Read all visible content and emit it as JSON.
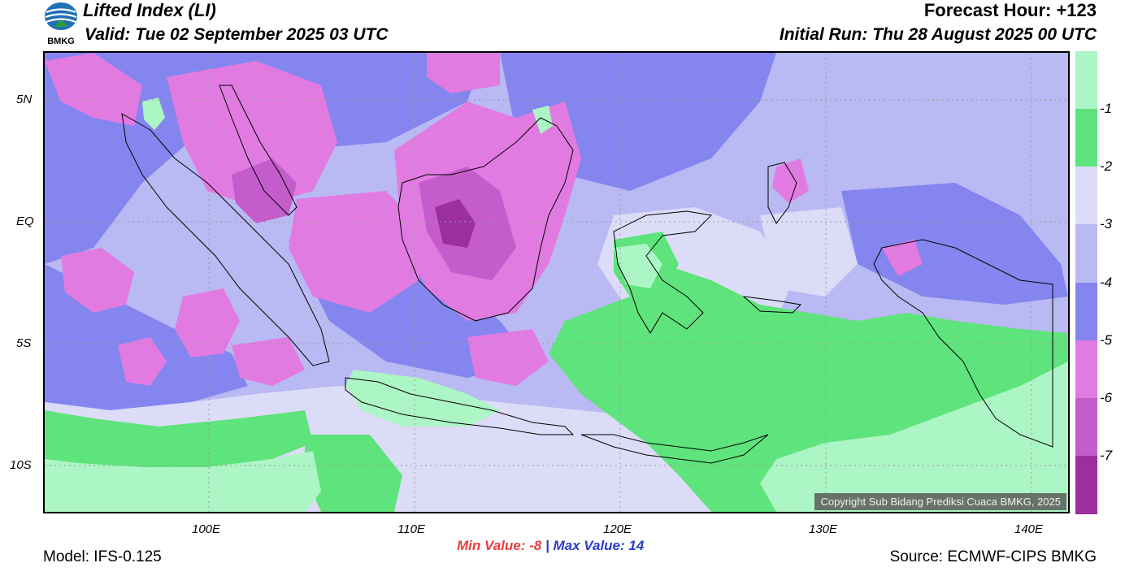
{
  "header": {
    "logo_text": "BMKG",
    "title": "Lifted Index (LI)",
    "valid": "Valid: Tue 02 September 2025 03 UTC",
    "forecast_hour": "Forecast Hour: +123",
    "initial_run": "Initial Run: Thu 28 August 2025 00 UTC"
  },
  "colorbar": {
    "levels": [
      {
        "label": "-1",
        "color": "#acf5c4"
      },
      {
        "label": "-2",
        "color": "#5fe37c"
      },
      {
        "label": "-3",
        "color": "#dcdcf8"
      },
      {
        "label": "-4",
        "color": "#b9b9f3"
      },
      {
        "label": "-5",
        "color": "#8585ef"
      },
      {
        "label": "-6",
        "color": "#e27be1"
      },
      {
        "label": "-7",
        "color": "#c55ccc"
      },
      {
        "label": "",
        "color": "#9a2f9d"
      }
    ]
  },
  "axes": {
    "lat_labels": [
      "5N",
      "EQ",
      "5S",
      "10S"
    ],
    "lon_labels": [
      "100E",
      "110E",
      "120E",
      "130E",
      "140E"
    ]
  },
  "stats": {
    "min_label": "Min Value:",
    "min_value": "-8",
    "separator": "|",
    "max_label": "Max Value:",
    "max_value": "14"
  },
  "footer": {
    "model": "Model: IFS-0.125",
    "source": "Source: ECMWF-CIPS BMKG",
    "copyright": "Copyright Sub Bidang Prediksi Cuaca BMKG, 2025"
  },
  "colors": {
    "cape_light_green": "#acf5c4",
    "green": "#5fe37c",
    "pale_lavender": "#dcdcf8",
    "lavender": "#b9b9f3",
    "blue_violet": "#8585ef",
    "pink": "#e27be1",
    "magenta": "#c55ccc",
    "purple": "#9a2f9d",
    "min_red": "#e84040",
    "max_blue": "#2a3ec8"
  }
}
